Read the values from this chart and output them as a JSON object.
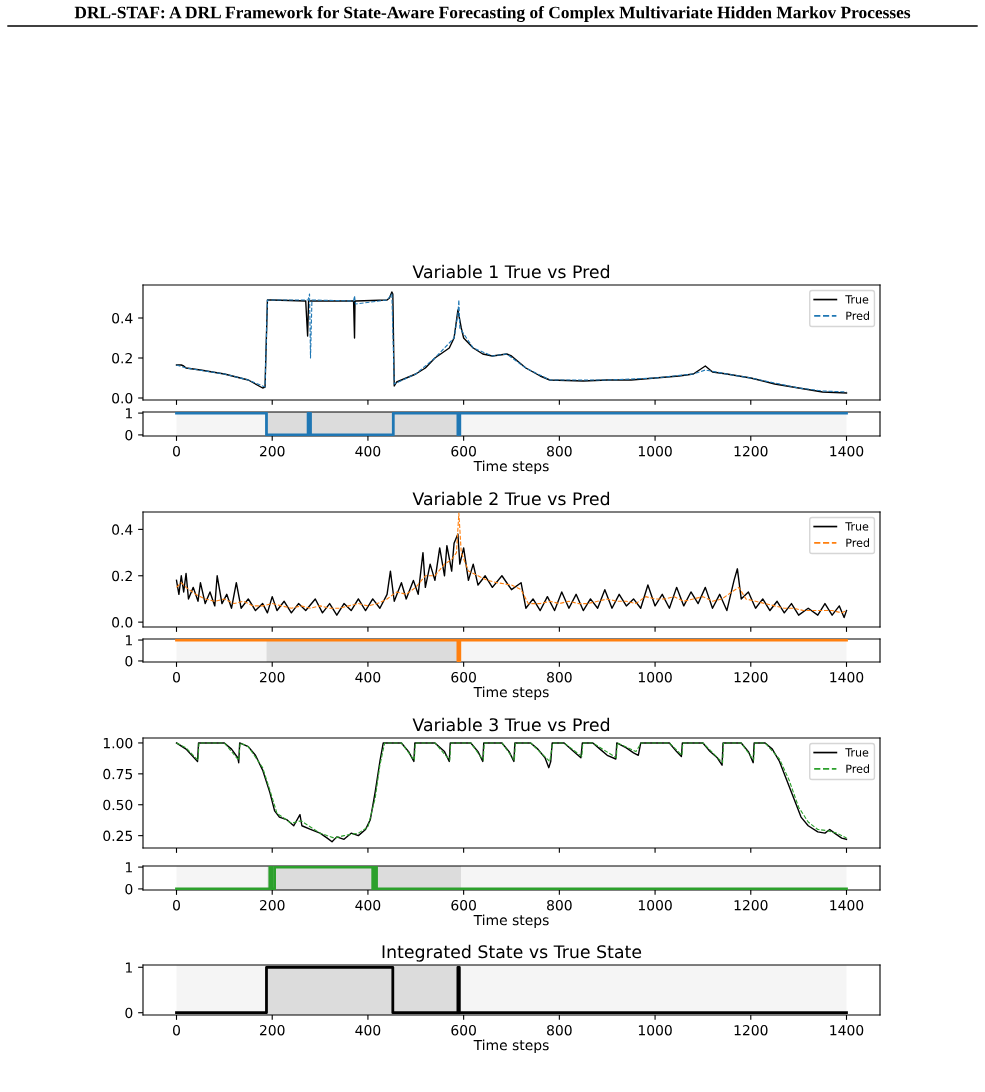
{
  "chart_data": [
    {
      "type": "line",
      "title": "Variable 1 True vs Pred",
      "annotations": [
        "DRL-STAF: A DRL Framework for State-Aware Forecasting of Complex Multivariate Hidden Markov Processes"
      ],
      "legend": "top right",
      "tick_labels": "y",
      "xlim": [
        -70,
        1470
      ],
      "xticks": [
        0,
        200,
        400,
        600,
        800,
        1000,
        1200,
        1400
      ],
      "ylim": [
        -0.01,
        0.565
      ],
      "yticks": [
        {
          "value": 0,
          "label": "0.0"
        },
        0.2,
        0.4
      ],
      "series": [
        {
          "name": "True",
          "color": "#000000",
          "line_style": "solid",
          "x": [
            0,
            10,
            15,
            20,
            50,
            100,
            150,
            180,
            185,
            190,
            200,
            270,
            274,
            276,
            278,
            370,
            372,
            373,
            375,
            440,
            445,
            450,
            452,
            455,
            460,
            480,
            500,
            520,
            540,
            570,
            580,
            588,
            595,
            600,
            620,
            640,
            660,
            690,
            700,
            730,
            760,
            780,
            850,
            900,
            950,
            1000,
            1050,
            1080,
            1105,
            1120,
            1150,
            1200,
            1250,
            1300,
            1350,
            1400
          ],
          "values": [
            0.165,
            0.165,
            0.16,
            0.15,
            0.14,
            0.12,
            0.09,
            0.05,
            0.055,
            0.49,
            0.49,
            0.485,
            0.31,
            0.485,
            0.485,
            0.485,
            0.3,
            0.485,
            0.485,
            0.49,
            0.5,
            0.53,
            0.52,
            0.06,
            0.08,
            0.1,
            0.12,
            0.15,
            0.2,
            0.25,
            0.3,
            0.44,
            0.35,
            0.3,
            0.25,
            0.22,
            0.21,
            0.22,
            0.21,
            0.15,
            0.11,
            0.09,
            0.085,
            0.09,
            0.09,
            0.1,
            0.11,
            0.12,
            0.16,
            0.13,
            0.12,
            0.1,
            0.07,
            0.05,
            0.03,
            0.025
          ]
        },
        {
          "name": "Pred",
          "color": "#1f77b4",
          "line_style": "dashed",
          "x": [
            0,
            20,
            100,
            150,
            185,
            190,
            275,
            278,
            280,
            283,
            370,
            372,
            374,
            440,
            450,
            455,
            500,
            540,
            580,
            588,
            590,
            592,
            620,
            660,
            690,
            730,
            780,
            900,
            1000,
            1080,
            1105,
            1150,
            1200,
            1300,
            1350,
            1400
          ],
          "values": [
            0.165,
            0.15,
            0.12,
            0.09,
            0.055,
            0.49,
            0.49,
            0.52,
            0.2,
            0.49,
            0.485,
            0.51,
            0.47,
            0.49,
            0.52,
            0.07,
            0.12,
            0.2,
            0.3,
            0.42,
            0.49,
            0.35,
            0.25,
            0.21,
            0.22,
            0.15,
            0.09,
            0.09,
            0.1,
            0.12,
            0.14,
            0.12,
            0.1,
            0.05,
            0.035,
            0.03
          ]
        }
      ]
    },
    {
      "type": "step",
      "xlabel": "Time steps",
      "xlim": [
        -70,
        1470
      ],
      "xticks": [
        0,
        200,
        400,
        600,
        800,
        1000,
        1200,
        1400
      ],
      "ylim": [
        -0.05,
        1.05
      ],
      "yticks": [
        0,
        1
      ],
      "bands": [
        {
          "axis": "x",
          "from": 0,
          "to": 188,
          "color": "#f5f5f5"
        },
        {
          "axis": "x",
          "from": 188,
          "to": 593,
          "color": "#dcdcdc"
        },
        {
          "axis": "x",
          "from": 593,
          "to": 1400,
          "color": "#f5f5f5"
        }
      ],
      "series": [
        {
          "color": "#1f77b4",
          "x": [
            0,
            188,
            275,
            280,
            453,
            588,
            592,
            1400
          ],
          "values": [
            1,
            0,
            1,
            0,
            1,
            0,
            1,
            1
          ]
        }
      ]
    },
    {
      "type": "line",
      "title": "Variable 2 True vs Pred",
      "legend": "top right",
      "tick_labels": "y",
      "xlim": [
        -70,
        1470
      ],
      "xticks": [
        0,
        200,
        400,
        600,
        800,
        1000,
        1200,
        1400
      ],
      "ylim": [
        -0.021,
        0.475
      ],
      "yticks": [
        {
          "value": 0,
          "label": "0.0"
        },
        0.2,
        0.4
      ],
      "series": [
        {
          "name": "True",
          "color": "#000000",
          "line_style": "solid",
          "x": [
            0,
            5,
            10,
            15,
            20,
            25,
            35,
            45,
            50,
            60,
            70,
            80,
            85,
            95,
            105,
            115,
            125,
            135,
            150,
            165,
            180,
            190,
            200,
            210,
            225,
            240,
            255,
            270,
            290,
            305,
            320,
            335,
            350,
            365,
            380,
            395,
            410,
            425,
            440,
            447,
            455,
            470,
            480,
            495,
            505,
            515,
            520,
            530,
            540,
            550,
            560,
            565,
            575,
            580,
            588,
            592,
            600,
            610,
            620,
            630,
            645,
            660,
            680,
            700,
            720,
            730,
            745,
            760,
            775,
            790,
            805,
            820,
            835,
            850,
            865,
            880,
            895,
            910,
            925,
            940,
            955,
            970,
            985,
            1000,
            1015,
            1030,
            1045,
            1060,
            1075,
            1090,
            1105,
            1120,
            1135,
            1150,
            1165,
            1172,
            1180,
            1195,
            1210,
            1225,
            1240,
            1255,
            1270,
            1285,
            1300,
            1320,
            1340,
            1355,
            1370,
            1385,
            1395,
            1400
          ],
          "values": [
            0.18,
            0.12,
            0.2,
            0.13,
            0.21,
            0.1,
            0.15,
            0.09,
            0.17,
            0.08,
            0.13,
            0.07,
            0.2,
            0.08,
            0.12,
            0.06,
            0.17,
            0.06,
            0.1,
            0.05,
            0.08,
            0.04,
            0.11,
            0.05,
            0.09,
            0.04,
            0.08,
            0.05,
            0.1,
            0.04,
            0.08,
            0.03,
            0.08,
            0.05,
            0.1,
            0.05,
            0.1,
            0.06,
            0.12,
            0.22,
            0.09,
            0.17,
            0.1,
            0.18,
            0.12,
            0.3,
            0.15,
            0.25,
            0.18,
            0.32,
            0.2,
            0.33,
            0.22,
            0.34,
            0.38,
            0.25,
            0.32,
            0.18,
            0.25,
            0.16,
            0.2,
            0.15,
            0.2,
            0.14,
            0.17,
            0.06,
            0.1,
            0.05,
            0.11,
            0.05,
            0.13,
            0.06,
            0.12,
            0.05,
            0.1,
            0.06,
            0.14,
            0.06,
            0.12,
            0.07,
            0.1,
            0.06,
            0.16,
            0.07,
            0.12,
            0.06,
            0.15,
            0.07,
            0.13,
            0.08,
            0.15,
            0.06,
            0.12,
            0.05,
            0.18,
            0.23,
            0.1,
            0.13,
            0.06,
            0.1,
            0.05,
            0.09,
            0.04,
            0.08,
            0.03,
            0.06,
            0.03,
            0.08,
            0.03,
            0.07,
            0.02,
            0.05
          ]
        },
        {
          "name": "Pred",
          "color": "#ff7f0e",
          "line_style": "dashed",
          "x": [
            0,
            10,
            20,
            40,
            60,
            80,
            100,
            120,
            140,
            160,
            180,
            200,
            220,
            240,
            260,
            280,
            300,
            320,
            340,
            360,
            380,
            400,
            420,
            440,
            460,
            480,
            500,
            520,
            540,
            560,
            575,
            585,
            590,
            595,
            610,
            630,
            650,
            670,
            700,
            720,
            735,
            760,
            780,
            800,
            820,
            840,
            860,
            880,
            900,
            920,
            940,
            960,
            980,
            1000,
            1020,
            1040,
            1060,
            1080,
            1100,
            1120,
            1140,
            1160,
            1175,
            1190,
            1210,
            1230,
            1250,
            1270,
            1290,
            1310,
            1330,
            1350,
            1370,
            1390,
            1400
          ],
          "values": [
            0.15,
            0.17,
            0.15,
            0.12,
            0.1,
            0.09,
            0.1,
            0.08,
            0.09,
            0.07,
            0.07,
            0.08,
            0.07,
            0.06,
            0.07,
            0.06,
            0.07,
            0.06,
            0.06,
            0.07,
            0.08,
            0.07,
            0.08,
            0.1,
            0.13,
            0.12,
            0.15,
            0.2,
            0.2,
            0.25,
            0.27,
            0.3,
            0.47,
            0.3,
            0.22,
            0.2,
            0.18,
            0.17,
            0.16,
            0.14,
            0.08,
            0.08,
            0.09,
            0.08,
            0.09,
            0.08,
            0.08,
            0.09,
            0.1,
            0.09,
            0.09,
            0.08,
            0.11,
            0.1,
            0.1,
            0.11,
            0.09,
            0.1,
            0.11,
            0.09,
            0.1,
            0.13,
            0.15,
            0.1,
            0.09,
            0.08,
            0.07,
            0.06,
            0.06,
            0.05,
            0.05,
            0.05,
            0.05,
            0.04,
            0.05
          ]
        }
      ]
    },
    {
      "type": "step",
      "xlabel": "Time steps",
      "xlim": [
        -70,
        1470
      ],
      "xticks": [
        0,
        200,
        400,
        600,
        800,
        1000,
        1200,
        1400
      ],
      "ylim": [
        -0.05,
        1.05
      ],
      "yticks": [
        0,
        1
      ],
      "bands": [
        {
          "axis": "x",
          "from": 0,
          "to": 188,
          "color": "#f5f5f5"
        },
        {
          "axis": "x",
          "from": 188,
          "to": 593,
          "color": "#dcdcdc"
        },
        {
          "axis": "x",
          "from": 593,
          "to": 1400,
          "color": "#f5f5f5"
        }
      ],
      "series": [
        {
          "color": "#ff7f0e",
          "x": [
            0,
            588,
            592,
            1400
          ],
          "values": [
            1,
            0,
            1,
            1
          ]
        }
      ]
    },
    {
      "type": "line",
      "title": "Variable 3 True vs Pred",
      "legend": "top right",
      "tick_labels": "y",
      "xlim": [
        -70,
        1470
      ],
      "xticks": [
        0,
        200,
        400,
        600,
        800,
        1000,
        1200,
        1400
      ],
      "ylim": [
        0.15,
        1.04
      ],
      "yticks": [
        {
          "value": 0.25,
          "label": "0.25"
        },
        {
          "value": 0.5,
          "label": "0.50"
        },
        {
          "value": 0.75,
          "label": "0.75"
        },
        {
          "value": 1,
          "label": "1.00"
        }
      ],
      "series": [
        {
          "name": "True",
          "color": "#000000",
          "line_style": "solid",
          "x": [
            0,
            20,
            44,
            46,
            100,
            115,
            128,
            130,
            132,
            150,
            165,
            180,
            195,
            205,
            215,
            230,
            245,
            258,
            262,
            280,
            300,
            315,
            325,
            335,
            350,
            365,
            380,
            395,
            405,
            415,
            425,
            432,
            470,
            485,
            496,
            498,
            540,
            560,
            570,
            572,
            615,
            630,
            640,
            642,
            680,
            695,
            705,
            707,
            740,
            755,
            770,
            778,
            782,
            785,
            810,
            830,
            845,
            848,
            870,
            885,
            900,
            918,
            920,
            940,
            955,
            965,
            970,
            1030,
            1045,
            1055,
            1057,
            1100,
            1115,
            1130,
            1140,
            1142,
            1180,
            1195,
            1205,
            1207,
            1230,
            1245,
            1260,
            1275,
            1290,
            1305,
            1320,
            1340,
            1355,
            1365,
            1375,
            1390,
            1400
          ],
          "values": [
            1.0,
            0.95,
            0.85,
            1.0,
            1.0,
            0.95,
            0.88,
            0.84,
            1.0,
            0.97,
            0.9,
            0.78,
            0.6,
            0.45,
            0.4,
            0.38,
            0.33,
            0.42,
            0.33,
            0.3,
            0.27,
            0.23,
            0.2,
            0.24,
            0.22,
            0.27,
            0.25,
            0.3,
            0.38,
            0.6,
            0.85,
            1.0,
            1.0,
            0.93,
            0.85,
            1.0,
            1.0,
            0.93,
            0.85,
            1.0,
            1.0,
            0.93,
            0.85,
            1.0,
            1.0,
            0.93,
            0.85,
            1.0,
            1.0,
            0.95,
            0.88,
            0.8,
            0.85,
            1.0,
            1.0,
            0.93,
            0.88,
            1.0,
            1.0,
            0.95,
            0.9,
            0.87,
            1.0,
            0.96,
            0.92,
            0.9,
            1.0,
            1.0,
            0.93,
            0.89,
            1.0,
            1.0,
            0.93,
            0.88,
            0.82,
            1.0,
            1.0,
            0.93,
            0.84,
            1.0,
            1.0,
            0.95,
            0.85,
            0.7,
            0.55,
            0.4,
            0.33,
            0.28,
            0.27,
            0.3,
            0.27,
            0.23,
            0.22
          ]
        },
        {
          "name": "Pred",
          "color": "#2ca02c",
          "line_style": "dashed",
          "x": [
            0,
            20,
            45,
            47,
            100,
            130,
            133,
            150,
            180,
            195,
            210,
            240,
            260,
            280,
            300,
            330,
            350,
            380,
            400,
            415,
            425,
            435,
            470,
            497,
            499,
            540,
            571,
            573,
            615,
            641,
            643,
            680,
            706,
            708,
            740,
            780,
            786,
            810,
            847,
            849,
            870,
            919,
            921,
            960,
            971,
            1030,
            1056,
            1058,
            1100,
            1141,
            1143,
            1180,
            1206,
            1208,
            1230,
            1260,
            1280,
            1300,
            1320,
            1340,
            1360,
            1380,
            1400
          ],
          "values": [
            1.0,
            0.96,
            0.86,
            1.0,
            1.0,
            0.86,
            1.0,
            0.97,
            0.8,
            0.62,
            0.43,
            0.35,
            0.37,
            0.32,
            0.27,
            0.23,
            0.25,
            0.27,
            0.32,
            0.55,
            0.82,
            1.0,
            1.0,
            0.86,
            1.0,
            1.0,
            0.86,
            1.0,
            1.0,
            0.86,
            1.0,
            1.0,
            0.86,
            1.0,
            1.0,
            0.85,
            1.0,
            1.0,
            0.89,
            1.0,
            1.0,
            0.88,
            1.0,
            0.93,
            1.0,
            1.0,
            0.9,
            1.0,
            1.0,
            0.84,
            1.0,
            1.0,
            0.86,
            1.0,
            1.0,
            0.87,
            0.7,
            0.48,
            0.36,
            0.3,
            0.29,
            0.27,
            0.23
          ]
        }
      ]
    },
    {
      "type": "step",
      "xlabel": "Time steps",
      "xlim": [
        -70,
        1470
      ],
      "xticks": [
        0,
        200,
        400,
        600,
        800,
        1000,
        1200,
        1400
      ],
      "ylim": [
        -0.05,
        1.05
      ],
      "yticks": [
        0,
        1
      ],
      "bands": [
        {
          "axis": "x",
          "from": 0,
          "to": 190,
          "color": "#f5f5f5"
        },
        {
          "axis": "x",
          "from": 190,
          "to": 595,
          "color": "#dcdcdc"
        },
        {
          "axis": "x",
          "from": 595,
          "to": 1400,
          "color": "#f5f5f5"
        }
      ],
      "series": [
        {
          "color": "#2ca02c",
          "x": [
            0,
            195,
            199,
            205,
            410,
            415,
            418,
            1400
          ],
          "values": [
            0,
            1,
            0,
            1,
            0,
            1,
            0,
            0
          ]
        }
      ]
    },
    {
      "type": "step",
      "title": "Integrated State vs True State",
      "xlabel": "Time steps",
      "xlim": [
        -70,
        1470
      ],
      "xticks": [
        0,
        200,
        400,
        600,
        800,
        1000,
        1200,
        1400
      ],
      "ylim": [
        -0.05,
        1.05
      ],
      "yticks": [
        0,
        1
      ],
      "bands": [
        {
          "axis": "x",
          "from": 0,
          "to": 188,
          "color": "#f5f5f5"
        },
        {
          "axis": "x",
          "from": 188,
          "to": 593,
          "color": "#dcdcdc"
        },
        {
          "axis": "x",
          "from": 593,
          "to": 1400,
          "color": "#f5f5f5"
        }
      ],
      "series": [
        {
          "color": "#000000",
          "x": [
            0,
            188,
            452,
            588,
            591,
            1400
          ],
          "values": [
            0,
            1,
            0,
            1,
            0,
            0
          ]
        }
      ]
    }
  ]
}
